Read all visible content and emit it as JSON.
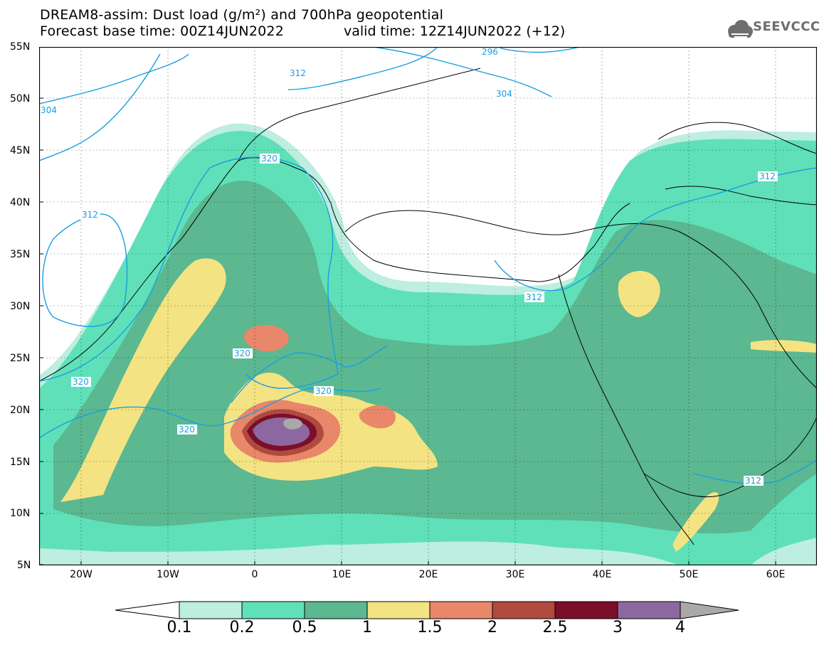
{
  "title": {
    "line1": "DREAM8-assim: Dust load (g/m²) and 700hPa geopotential",
    "line2": "Forecast base time: 00Z14JUN2022",
    "valid": "valid time: 12Z14JUN2022 (+12)"
  },
  "logo": {
    "text": "SEEVCCC",
    "icon": "cloud-icon"
  },
  "latitude_labels": [
    "55N",
    "50N",
    "45N",
    "40N",
    "35N",
    "30N",
    "25N",
    "20N",
    "15N",
    "10N",
    "5N"
  ],
  "longitude_labels": [
    "20W",
    "10W",
    "0",
    "10E",
    "20E",
    "30E",
    "40E",
    "50E",
    "60E"
  ],
  "contour_labels": [
    "296",
    "304",
    "312",
    "312",
    "320",
    "320",
    "320",
    "320",
    "320",
    "304",
    "312",
    "312",
    "312",
    "312"
  ],
  "colorbar": {
    "labels": [
      "0.1",
      "0.2",
      "0.5",
      "1",
      "1.5",
      "2",
      "2.5",
      "3",
      "4"
    ],
    "colors": [
      "#ffffff",
      "#bdeee0",
      "#5fe0b8",
      "#5bb890",
      "#f4e383",
      "#e8876a",
      "#b04a3f",
      "#7b0f2a",
      "#8d68a0",
      "#a9a9a9"
    ]
  },
  "colors": {
    "ocean_land": "#ffffff",
    "level_0_1": "#bdeee0",
    "level_0_2": "#5fe0b8",
    "level_0_5": "#5bb890",
    "level_1": "#f4e383",
    "level_1_5": "#e8876a",
    "level_2": "#b04a3f",
    "level_2_5": "#7b0f2a",
    "level_3": "#8d68a0",
    "level_4": "#a9a9a9",
    "contour": "#1a9ee0"
  }
}
